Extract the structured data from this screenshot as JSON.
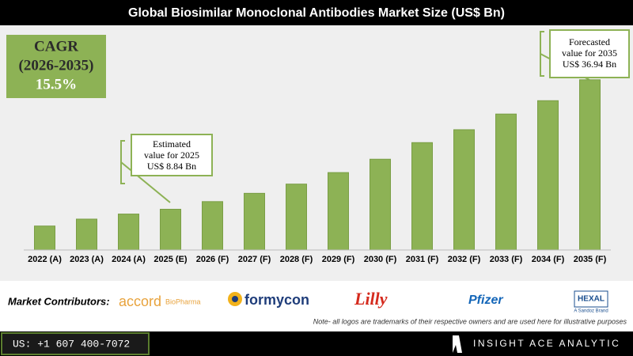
{
  "chart_data": {
    "type": "bar",
    "title": "Global Biosimilar Monoclonal Antibodies Market Size (US$ Bn)",
    "categories": [
      "2022 (A)",
      "2023 (A)",
      "2024 (A)",
      "2025 (E)",
      "2026 (F)",
      "2027 (F)",
      "2028 (F)",
      "2029 (F)",
      "2030 (F)",
      "2031 (F)",
      "2032 (F)",
      "2033 (F)",
      "2034 (F)",
      "2035 (F)"
    ],
    "values": [
      5.2,
      6.7,
      7.8,
      8.84,
      10.5,
      12.3,
      14.3,
      16.8,
      19.7,
      23.3,
      26.1,
      29.5,
      32.4,
      36.94
    ],
    "color": "#8db255",
    "ylim": [
      0,
      40
    ],
    "cagr": [
      "CAGR",
      "(2026-2035)",
      "15.5%"
    ],
    "annotations": [
      [
        "Estimated",
        "value for 2025",
        "US$ 8.84 Bn"
      ],
      [
        "Forecasted",
        "value for 2035",
        "US$ 36.94 Bn"
      ]
    ]
  },
  "contributors": {
    "label": "Market Contributors:",
    "logos": [
      "accord",
      "BioPharma",
      "formycon",
      "Lilly",
      "Pfizer",
      "HEXAL",
      "A Sandoz Brand"
    ],
    "note": "Note- all logos are trademarks of their respective owners and are used here for illustrative purposes"
  },
  "footer": {
    "phone": "US: +1 607 400-7072",
    "brand": "INSIGHT ACE ANALYTIC"
  }
}
